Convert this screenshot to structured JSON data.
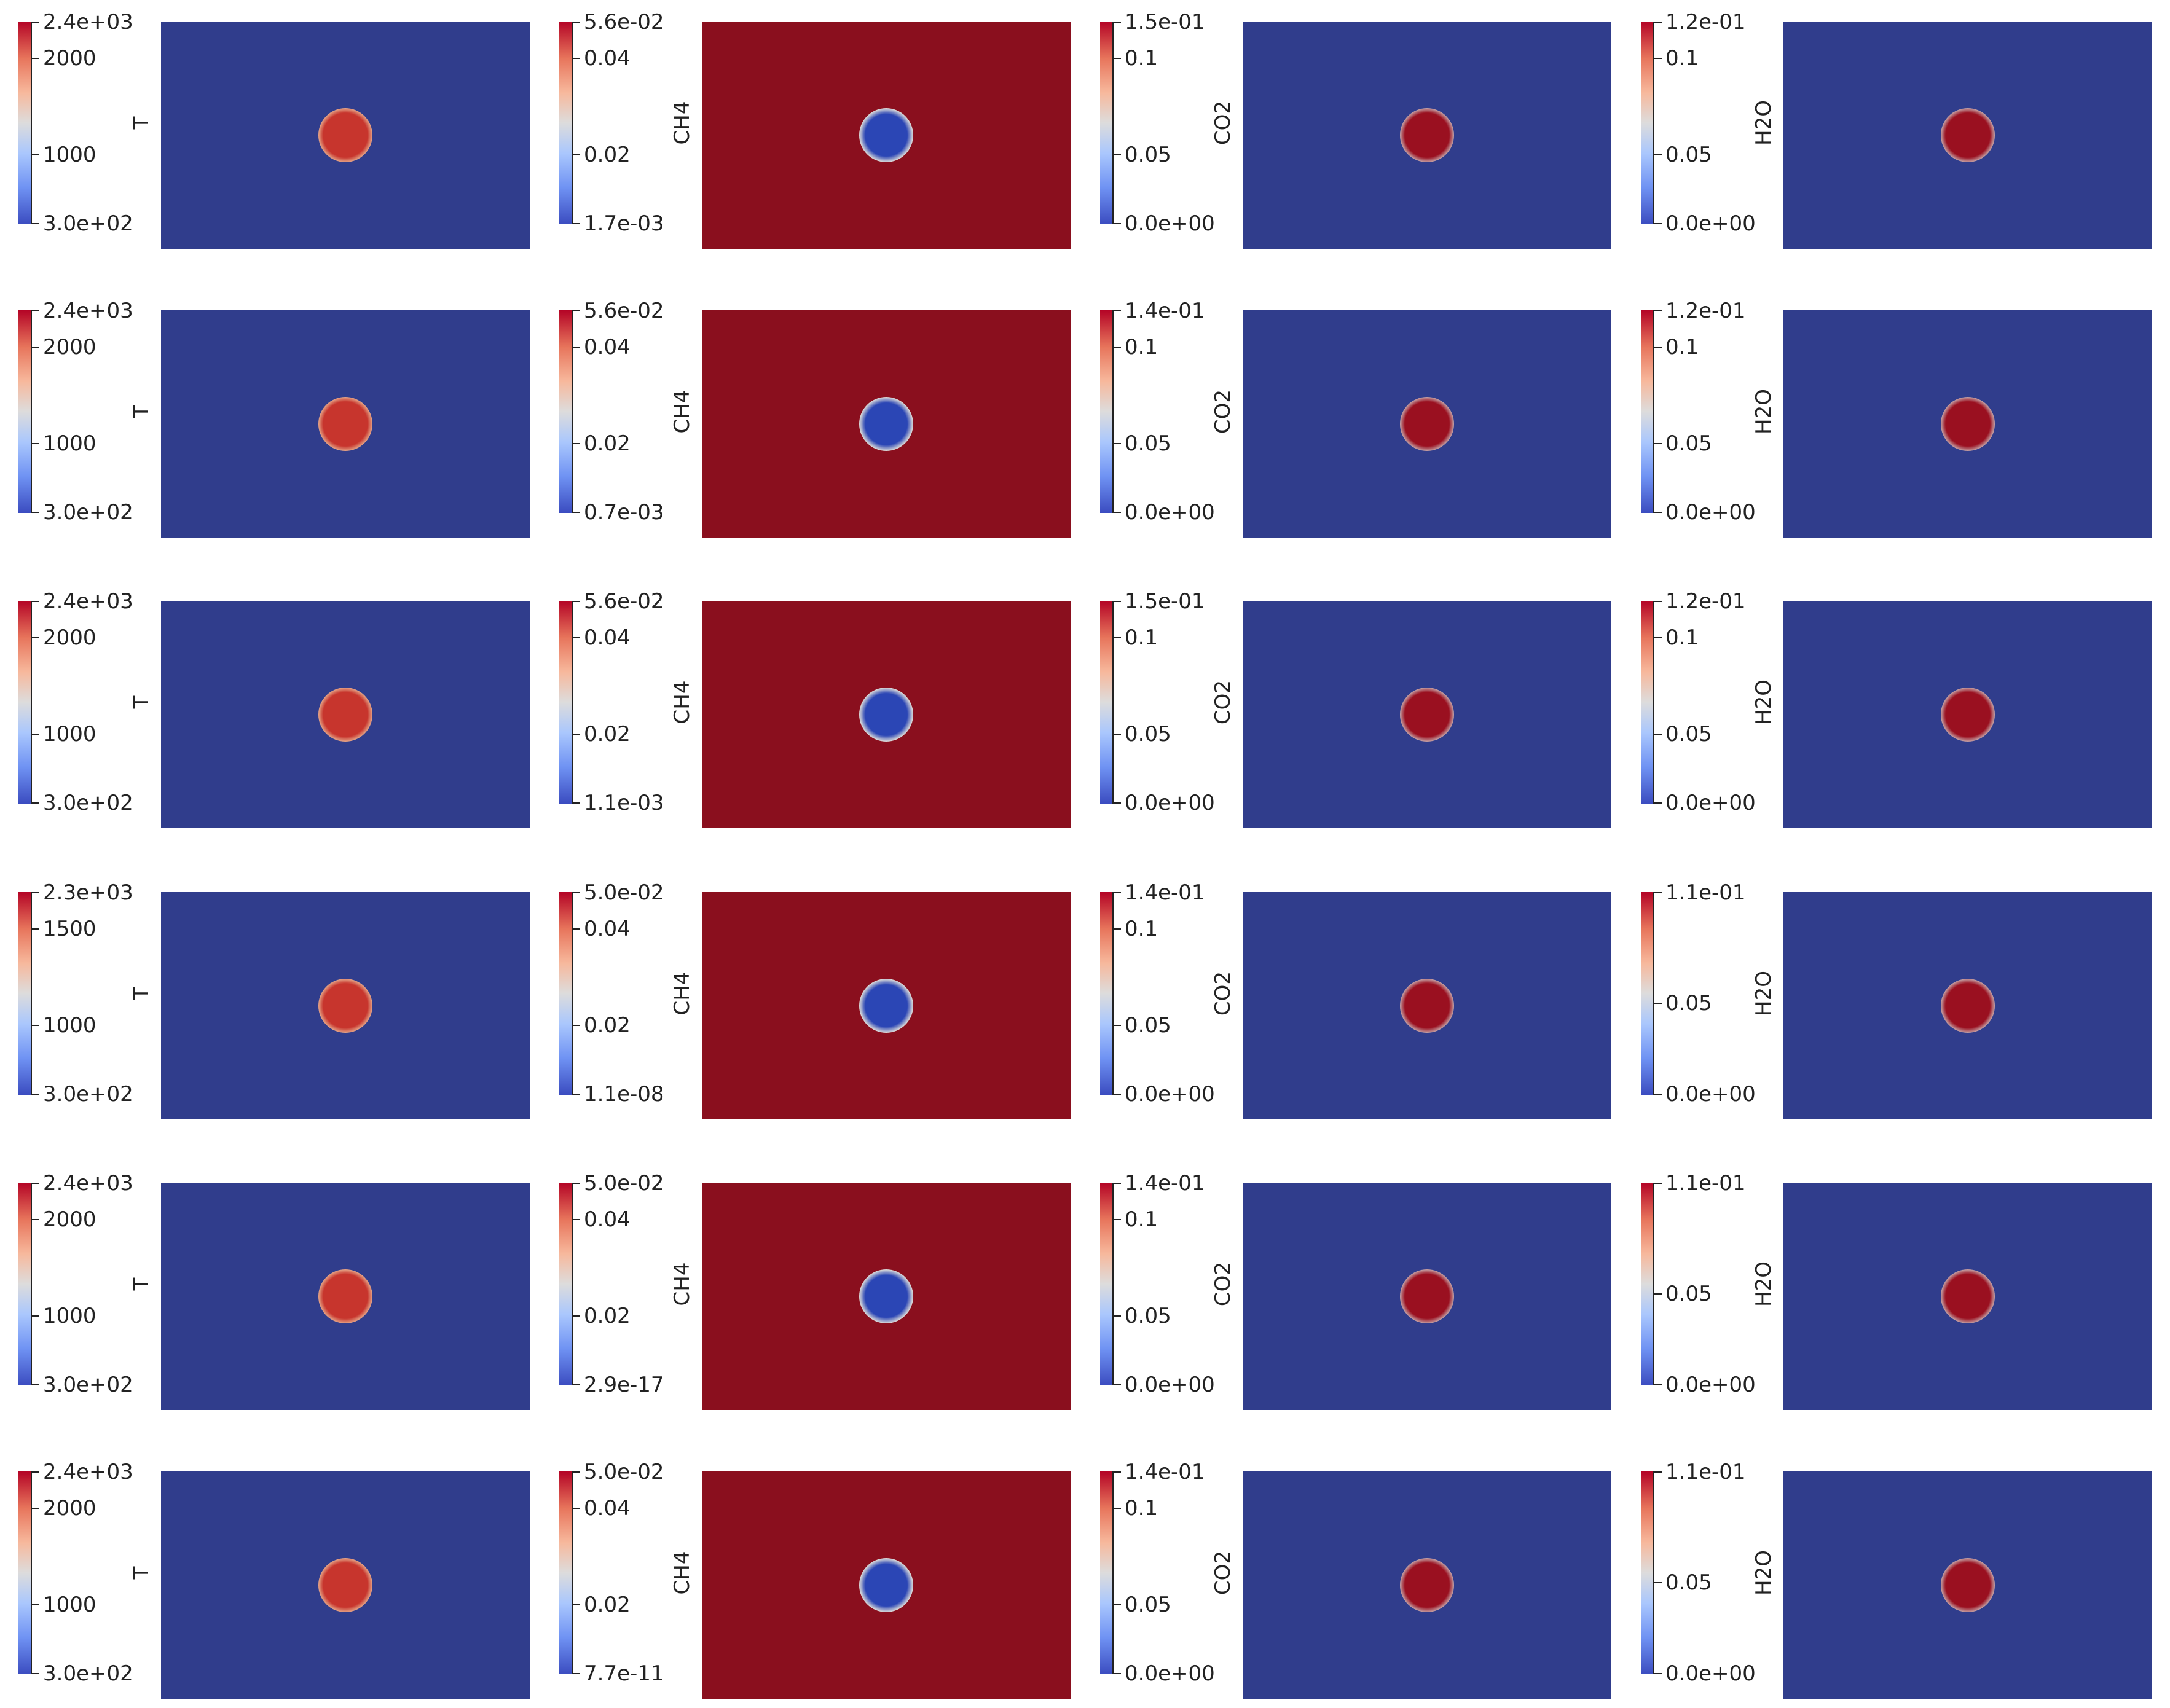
{
  "colors": {
    "background_low": "#303d8c",
    "background_high": "#8a0f1e",
    "blob_hot": "#c7352d",
    "blob_cold": "#2b46b5",
    "colormap": [
      "#3b4cc0",
      "#aac7fd",
      "#dddcdc",
      "#f7b89c",
      "#b40426"
    ]
  },
  "rows": [
    {
      "T": {
        "label": "T",
        "ticks": [
          "2.4e+03",
          "2000",
          "1000",
          "3.0e+02"
        ]
      },
      "CH4": {
        "label": "CH4",
        "ticks": [
          "5.6e-02",
          "0.04",
          "0.02",
          "1.7e-03"
        ]
      },
      "CO2": {
        "label": "CO2",
        "ticks": [
          "1.5e-01",
          "0.1",
          "0.05",
          "0.0e+00"
        ]
      },
      "H2O": {
        "label": "H2O",
        "ticks": [
          "1.2e-01",
          "0.1",
          "0.05",
          "0.0e+00"
        ]
      }
    },
    {
      "T": {
        "label": "T",
        "ticks": [
          "2.4e+03",
          "2000",
          "1000",
          "3.0e+02"
        ]
      },
      "CH4": {
        "label": "CH4",
        "ticks": [
          "5.6e-02",
          "0.04",
          "0.02",
          "0.7e-03"
        ]
      },
      "CO2": {
        "label": "CO2",
        "ticks": [
          "1.4e-01",
          "0.1",
          "0.05",
          "0.0e+00"
        ]
      },
      "H2O": {
        "label": "H2O",
        "ticks": [
          "1.2e-01",
          "0.1",
          "0.05",
          "0.0e+00"
        ]
      }
    },
    {
      "T": {
        "label": "T",
        "ticks": [
          "2.4e+03",
          "2000",
          "1000",
          "3.0e+02"
        ]
      },
      "CH4": {
        "label": "CH4",
        "ticks": [
          "5.6e-02",
          "0.04",
          "0.02",
          "1.1e-03"
        ]
      },
      "CO2": {
        "label": "CO2",
        "ticks": [
          "1.5e-01",
          "0.1",
          "0.05",
          "0.0e+00"
        ]
      },
      "H2O": {
        "label": "H2O",
        "ticks": [
          "1.2e-01",
          "0.1",
          "0.05",
          "0.0e+00"
        ]
      }
    },
    {
      "T": {
        "label": "T",
        "ticks": [
          "2.3e+03",
          "1500",
          "1000",
          "3.0e+02"
        ]
      },
      "CH4": {
        "label": "CH4",
        "ticks": [
          "5.0e-02",
          "0.04",
          "0.02",
          "1.1e-08"
        ]
      },
      "CO2": {
        "label": "CO2",
        "ticks": [
          "1.4e-01",
          "0.1",
          "0.05",
          "0.0e+00"
        ]
      },
      "H2O": {
        "label": "H2O",
        "ticks": [
          "1.1e-01",
          "0.05",
          "0.0e+00"
        ]
      }
    },
    {
      "T": {
        "label": "T",
        "ticks": [
          "2.4e+03",
          "2000",
          "1000",
          "3.0e+02"
        ]
      },
      "CH4": {
        "label": "CH4",
        "ticks": [
          "5.0e-02",
          "0.04",
          "0.02",
          "2.9e-17"
        ]
      },
      "CO2": {
        "label": "CO2",
        "ticks": [
          "1.4e-01",
          "0.1",
          "0.05",
          "0.0e+00"
        ]
      },
      "H2O": {
        "label": "H2O",
        "ticks": [
          "1.1e-01",
          "0.05",
          "0.0e+00"
        ]
      }
    },
    {
      "T": {
        "label": "T",
        "ticks": [
          "2.4e+03",
          "2000",
          "1000",
          "3.0e+02"
        ]
      },
      "CH4": {
        "label": "CH4",
        "ticks": [
          "5.0e-02",
          "0.04",
          "0.02",
          "7.7e-11"
        ]
      },
      "CO2": {
        "label": "CO2",
        "ticks": [
          "1.4e-01",
          "0.1",
          "0.05",
          "0.0e+00"
        ]
      },
      "H2O": {
        "label": "H2O",
        "ticks": [
          "1.1e-01",
          "0.05",
          "0.0e+00"
        ]
      }
    }
  ]
}
